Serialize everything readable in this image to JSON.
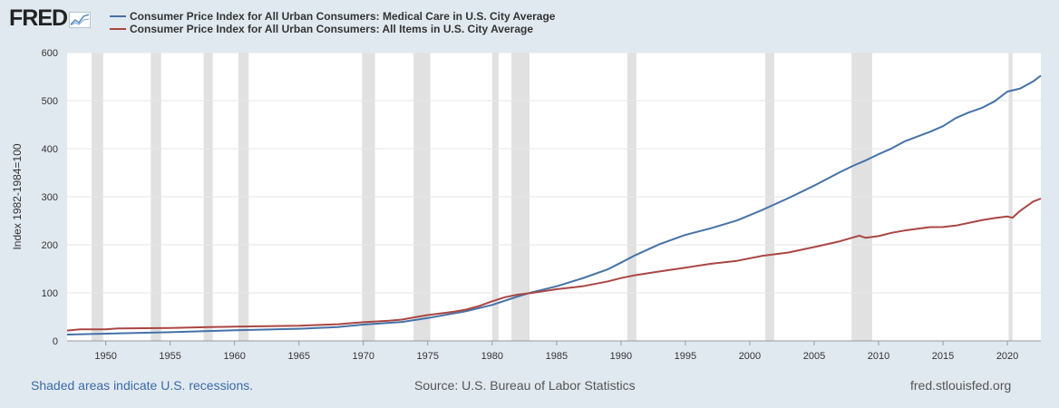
{
  "brand": {
    "logo_text": "FRED"
  },
  "colors": {
    "background": "#e1e9f0",
    "plot_bg": "#ffffff",
    "recession": "#e1e1e1"
  },
  "footer": {
    "left": "Shaded areas indicate U.S. recessions.",
    "center": "Source: U.S. Bureau of Labor Statistics",
    "right": "fred.stlouisfed.org"
  },
  "chart_data": {
    "type": "line",
    "title": "",
    "xlabel": "",
    "ylabel": "Index 1982-1984=100",
    "xlim": [
      1947,
      2022.6
    ],
    "ylim": [
      0,
      600
    ],
    "x_ticks": [
      1950,
      1955,
      1960,
      1965,
      1970,
      1975,
      1980,
      1985,
      1990,
      1995,
      2000,
      2005,
      2010,
      2015,
      2020
    ],
    "y_ticks": [
      0,
      100,
      200,
      300,
      400,
      500,
      600
    ],
    "grid": true,
    "legend_position": "top-left",
    "recessions": [
      [
        1948.9,
        1949.8
      ],
      [
        1953.5,
        1954.3
      ],
      [
        1957.6,
        1958.3
      ],
      [
        1960.3,
        1961.1
      ],
      [
        1969.9,
        1970.9
      ],
      [
        1973.9,
        1975.2
      ],
      [
        1980.0,
        1980.5
      ],
      [
        1981.5,
        1982.9
      ],
      [
        1990.5,
        1991.2
      ],
      [
        2001.2,
        2001.9
      ],
      [
        2007.9,
        2009.5
      ],
      [
        2020.1,
        2020.4
      ]
    ],
    "series": [
      {
        "name": "Consumer Price Index for All Urban Consumers: Medical Care in U.S. City Average",
        "color": "#4572a7",
        "points": [
          [
            1947,
            13.3
          ],
          [
            1950,
            15.1
          ],
          [
            1955,
            18.2
          ],
          [
            1960,
            22.3
          ],
          [
            1965,
            25.2
          ],
          [
            1968,
            28.9
          ],
          [
            1970,
            34.0
          ],
          [
            1973,
            39.4
          ],
          [
            1975,
            47.5
          ],
          [
            1978,
            61.8
          ],
          [
            1980,
            74.9
          ],
          [
            1982,
            92.5
          ],
          [
            1983,
            100.6
          ],
          [
            1985,
            113.5
          ],
          [
            1987,
            130.1
          ],
          [
            1989,
            149.3
          ],
          [
            1990,
            162.8
          ],
          [
            1991,
            177.0
          ],
          [
            1993,
            201.4
          ],
          [
            1995,
            220.5
          ],
          [
            1997,
            234.6
          ],
          [
            1999,
            250.6
          ],
          [
            2001,
            272.8
          ],
          [
            2003,
            297.1
          ],
          [
            2005,
            323.2
          ],
          [
            2007,
            351.1
          ],
          [
            2008,
            364.1
          ],
          [
            2009,
            375.6
          ],
          [
            2010,
            388.4
          ],
          [
            2011,
            400.3
          ],
          [
            2012,
            414.9
          ],
          [
            2013,
            425.1
          ],
          [
            2014,
            435.3
          ],
          [
            2015,
            446.8
          ],
          [
            2016,
            463.7
          ],
          [
            2017,
            475.3
          ],
          [
            2018,
            484.7
          ],
          [
            2019,
            498.4
          ],
          [
            2020,
            518.9
          ],
          [
            2021,
            525.2
          ],
          [
            2022,
            540.0
          ],
          [
            2022.6,
            552.0
          ]
        ]
      },
      {
        "name": "Consumer Price Index for All Urban Consumers: All Items in U.S. City Average",
        "color": "#aa4643",
        "points": [
          [
            1947,
            21.5
          ],
          [
            1948,
            24.0
          ],
          [
            1950,
            24.1
          ],
          [
            1951,
            26.0
          ],
          [
            1955,
            26.8
          ],
          [
            1958,
            28.9
          ],
          [
            1960,
            29.6
          ],
          [
            1965,
            31.5
          ],
          [
            1968,
            34.8
          ],
          [
            1970,
            38.8
          ],
          [
            1972,
            41.8
          ],
          [
            1973,
            44.4
          ],
          [
            1974,
            49.3
          ],
          [
            1975,
            53.8
          ],
          [
            1977,
            60.6
          ],
          [
            1978,
            65.2
          ],
          [
            1979,
            72.6
          ],
          [
            1980,
            82.4
          ],
          [
            1981,
            90.9
          ],
          [
            1982,
            96.5
          ],
          [
            1983,
            99.6
          ],
          [
            1985,
            107.6
          ],
          [
            1987,
            113.6
          ],
          [
            1989,
            124.0
          ],
          [
            1990,
            130.7
          ],
          [
            1991,
            136.2
          ],
          [
            1993,
            144.5
          ],
          [
            1995,
            152.4
          ],
          [
            1997,
            160.5
          ],
          [
            1999,
            166.6
          ],
          [
            2001,
            177.1
          ],
          [
            2003,
            184.0
          ],
          [
            2005,
            195.3
          ],
          [
            2007,
            207.3
          ],
          [
            2008.5,
            219.0
          ],
          [
            2009,
            214.5
          ],
          [
            2010,
            218.1
          ],
          [
            2011,
            224.9
          ],
          [
            2012,
            229.6
          ],
          [
            2014,
            236.7
          ],
          [
            2015,
            237.0
          ],
          [
            2016,
            240.0
          ],
          [
            2018,
            251.1
          ],
          [
            2019,
            255.7
          ],
          [
            2020,
            258.8
          ],
          [
            2020.4,
            256.4
          ],
          [
            2021,
            271.0
          ],
          [
            2022,
            290.0
          ],
          [
            2022.6,
            296.3
          ]
        ]
      }
    ]
  }
}
